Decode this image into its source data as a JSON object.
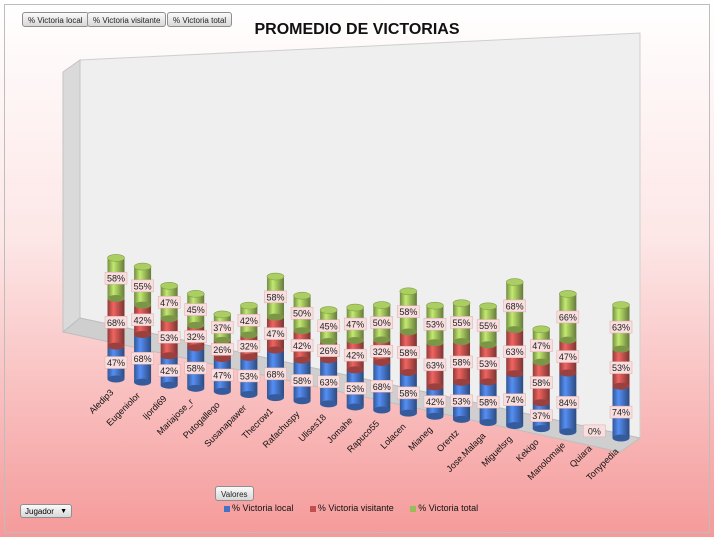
{
  "field_buttons": {
    "local": "% Victoria local",
    "visitante": "% Victoria visitante",
    "total": "% Victoria total"
  },
  "valores_button": "Valores",
  "jugador_dropdown": "Jugador",
  "colors": {
    "local": "#4472c4",
    "visitante": "#c0504d",
    "total": "#9bbb59"
  },
  "chart_data": {
    "type": "bar",
    "stacked": true,
    "title": "PROMEDIO DE VICTORIAS",
    "categories": [
      "Aledip3",
      "Eugeniolor",
      "Ijordi69",
      "Mariajose_r",
      "Putogallego",
      "Susanapawer",
      "Thecrow1",
      "Rafachuspy",
      "Ulises18",
      "Jomahe",
      "Rapuco55",
      "Lolacen",
      "Mianeg",
      "Orentz",
      "Jose.Malaga",
      "Miguelsrg",
      "Kekigo",
      "Manolomaje",
      "Quiara",
      "Tonypedia"
    ],
    "series": [
      {
        "name": "% Victoria local",
        "labels": [
          "47%",
          "68%",
          "42%",
          "58%",
          "47%",
          "53%",
          "68%",
          "58%",
          "63%",
          "53%",
          "68%",
          "58%",
          "42%",
          "53%",
          "58%",
          "74%",
          "37%",
          "84%",
          "0%",
          "74%"
        ]
      },
      {
        "name": "% Victoria visitante",
        "labels": [
          "68%",
          "42%",
          "53%",
          "32%",
          "26%",
          "32%",
          "47%",
          "42%",
          "26%",
          "42%",
          "32%",
          "58%",
          "63%",
          "58%",
          "53%",
          "63%",
          "58%",
          "47%",
          "",
          "53%"
        ]
      },
      {
        "name": "% Victoria total",
        "labels": [
          "58%",
          "55%",
          "47%",
          "45%",
          "37%",
          "42%",
          "58%",
          "50%",
          "45%",
          "47%",
          "50%",
          "58%",
          "53%",
          "55%",
          "55%",
          "68%",
          "47%",
          "66%",
          "",
          "63%"
        ]
      }
    ],
    "values": {
      "local": [
        47,
        68,
        42,
        58,
        47,
        53,
        68,
        58,
        63,
        53,
        68,
        58,
        42,
        53,
        58,
        74,
        37,
        84,
        0,
        74
      ],
      "visitante": [
        68,
        42,
        53,
        32,
        26,
        32,
        47,
        42,
        26,
        42,
        32,
        58,
        63,
        58,
        53,
        63,
        58,
        47,
        0,
        53
      ],
      "total": [
        58,
        55,
        47,
        45,
        37,
        42,
        58,
        50,
        45,
        47,
        50,
        58,
        53,
        55,
        55,
        68,
        47,
        66,
        0,
        63
      ]
    },
    "legend": [
      "% Victoria local",
      "% Victoria visitante",
      "% Victoria total"
    ],
    "legend_position": "bottom",
    "xlabel": "",
    "ylabel": ""
  }
}
